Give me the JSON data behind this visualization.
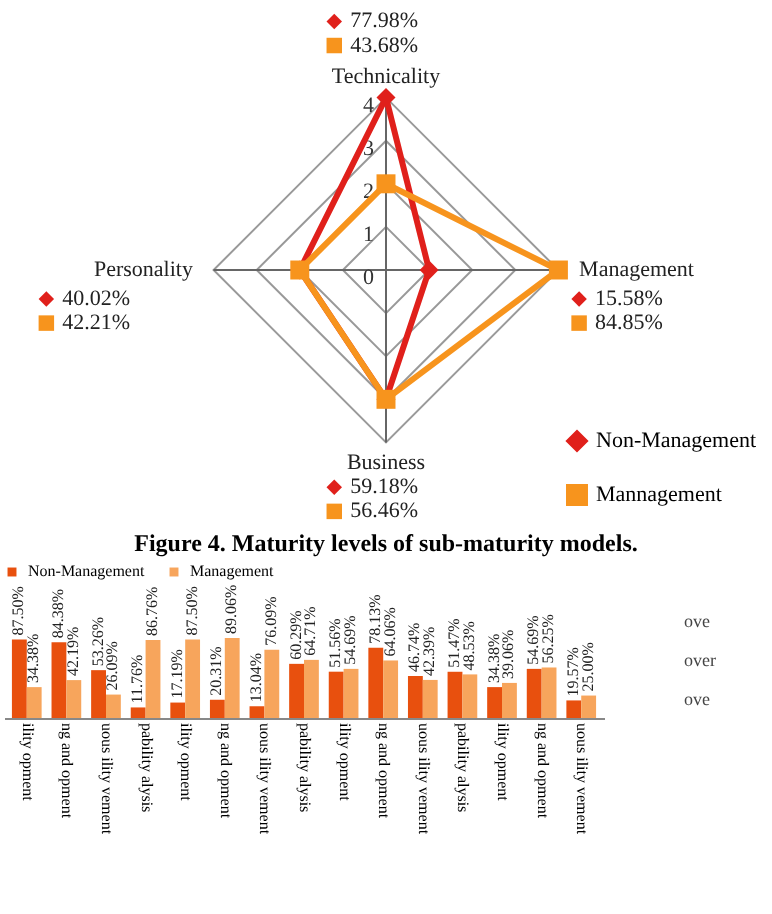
{
  "chart_data": [
    {
      "type": "radar",
      "title": "Figure 4. Maturity levels of sub-maturity models.",
      "categories": [
        "Technicality",
        "Management",
        "Business",
        "Personality"
      ],
      "series": [
        {
          "name": "Non-Management",
          "color": "#e0201b",
          "marker": "diamond",
          "values": [
            4,
            1,
            3,
            2
          ]
        },
        {
          "name": "Mannagement",
          "color": "#f7941d",
          "marker": "square",
          "values": [
            2,
            4,
            3,
            2
          ]
        }
      ],
      "ylim": [
        0,
        4
      ],
      "yticks": [
        0,
        1,
        2,
        3,
        4
      ],
      "grid": true,
      "legend": "bottom right",
      "line_style": "solid",
      "annotations": [
        "77.98%",
        "43.68%",
        "15.58%",
        "84.85%",
        "59.18%",
        "56.46%",
        "40.02%",
        "42.21%"
      ]
    },
    {
      "type": "bar",
      "categories": [
        "ility opment",
        "ng and opment",
        "uous ility vement",
        "pability alysis",
        "ility opment",
        "ng and opment",
        "uous ility vement",
        "pability alysis",
        "ility opment",
        "ng and opment",
        "uous ility vement",
        "pability alysis",
        "ility opment",
        "ng and opment",
        "uous ility vement"
      ],
      "series": [
        {
          "name": "Non-Management",
          "color": "#e8500e",
          "values": [
            87.5,
            84.38,
            53.26,
            11.76,
            17.19,
            20.31,
            13.04,
            60.29,
            51.56,
            78.13,
            46.74,
            51.47,
            34.38,
            54.69,
            19.57
          ],
          "value_labels": [
            "87.50%",
            "84.38%",
            "53.26%",
            "11.76%",
            "17.19%",
            "20.31%",
            "13.04%",
            "60.29%",
            "51.56%",
            "78.13%",
            "46.74%",
            "51.47%",
            "34.38%",
            "54.69%",
            "19.57%"
          ]
        },
        {
          "name": "Management",
          "color": "#f7a55c",
          "values": [
            34.38,
            42.19,
            26.09,
            86.76,
            87.5,
            89.06,
            76.09,
            64.71,
            54.69,
            64.06,
            42.39,
            48.53,
            39.06,
            56.25,
            25.0
          ],
          "value_labels": [
            "34.38%",
            "42.19%",
            "26.09%",
            "86.76%",
            "87.50%",
            "89.06%",
            "76.09%",
            "64.71%",
            "54.69%",
            "64.06%",
            "42.39%",
            "48.53%",
            "39.06%",
            "56.25%",
            "25.00%"
          ]
        }
      ],
      "legend": "top",
      "annotations": [
        "ove",
        "over",
        "ove"
      ]
    }
  ]
}
